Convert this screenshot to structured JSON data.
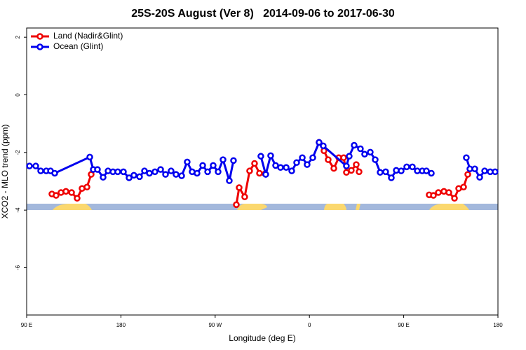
{
  "chart_data": {
    "type": "line",
    "title": "25S-20S August (Ver 8)   2014-09-06 to 2017-06-30",
    "x_label": "Longitude (deg E)",
    "y_label": "XCO2 - MLO trend (ppm)",
    "xlim": [
      90,
      540
    ],
    "xticks": [
      {
        "value": 90,
        "label": "90 E"
      },
      {
        "value": 180,
        "label": "180"
      },
      {
        "value": 270,
        "label": "90 W"
      },
      {
        "value": 360,
        "label": "0"
      },
      {
        "value": 450,
        "label": "90 E"
      },
      {
        "value": 540,
        "label": "180"
      }
    ],
    "ylim": [
      -7.64,
      2.32
    ],
    "yticks": [
      2,
      0,
      -2,
      -4,
      -6
    ],
    "legend": "top-left",
    "series": [
      {
        "name": "Land (Nadir&Glint)",
        "color": "#ee0000",
        "x": [
          114.1,
          118.1,
          122.8,
          127.5,
          132.9,
          138.2,
          142.9,
          147.6,
          151.6,
          null,
          290.2,
          292.9,
          298.2,
          302.9,
          307.6,
          312.3,
          317.7,
          null,
          369.2,
          373.9,
          377.9,
          383.3,
          388.0,
          392.7,
          395.3,
          400.0,
          404.7,
          407.4,
          null,
          474.3,
          478.4,
          483.1,
          488.4,
          493.1,
          498.5,
          502.5,
          507.2,
          511.2
        ],
        "values": [
          -3.44,
          -3.49,
          -3.39,
          -3.35,
          -3.39,
          -3.59,
          -3.25,
          -3.2,
          -2.76,
          null,
          -3.81,
          -3.22,
          -3.54,
          -2.64,
          -2.38,
          -2.72,
          -2.74,
          null,
          -1.65,
          -1.94,
          -2.25,
          -2.55,
          -2.18,
          -2.18,
          -2.69,
          -2.62,
          -2.42,
          -2.67,
          null,
          -3.47,
          -3.49,
          -3.39,
          -3.35,
          -3.39,
          -3.59,
          -3.25,
          -3.2,
          -2.76
        ]
      },
      {
        "name": "Ocean (Glint)",
        "color": "#0000ee",
        "x": [
          92.7,
          98.7,
          103.4,
          108.7,
          112.8,
          116.8,
          150.3,
          153.6,
          157.6,
          163.0,
          167.7,
          172.4,
          177.0,
          182.4,
          187.8,
          192.4,
          197.8,
          202.5,
          207.2,
          212.5,
          217.9,
          222.6,
          227.9,
          232.6,
          238.0,
          243.3,
          248.0,
          252.7,
          258.1,
          262.8,
          268.1,
          272.8,
          277.5,
          283.5,
          287.5,
          null,
          313.6,
          318.3,
          323.0,
          327.7,
          332.4,
          337.8,
          343.1,
          347.8,
          353.2,
          357.8,
          363.2,
          369.2,
          373.2,
          395.3,
          398.0,
          402.7,
          408.7,
          412.7,
          418.1,
          422.8,
          427.5,
          432.8,
          438.2,
          442.9,
          447.6,
          452.9,
          458.3,
          463.0,
          467.7,
          471.7,
          476.4,
          null,
          509.8,
          513.2,
          517.9,
          522.6,
          527.3,
          532.6,
          537.3
        ],
        "values": [
          -2.47,
          -2.47,
          -2.64,
          -2.64,
          -2.64,
          -2.72,
          -2.16,
          -2.59,
          -2.59,
          -2.86,
          -2.64,
          -2.67,
          -2.67,
          -2.67,
          -2.88,
          -2.79,
          -2.84,
          -2.64,
          -2.72,
          -2.67,
          -2.59,
          -2.76,
          -2.64,
          -2.76,
          -2.81,
          -2.33,
          -2.67,
          -2.72,
          -2.45,
          -2.67,
          -2.45,
          -2.67,
          -2.25,
          -2.98,
          -2.28,
          null,
          -2.13,
          -2.76,
          -2.11,
          -2.45,
          -2.52,
          -2.52,
          -2.64,
          -2.35,
          -2.18,
          -2.42,
          -2.18,
          -1.65,
          -1.77,
          -2.47,
          -2.13,
          -1.75,
          -1.87,
          -2.06,
          -1.99,
          -2.25,
          -2.69,
          -2.67,
          -2.88,
          -2.62,
          -2.64,
          -2.5,
          -2.5,
          -2.64,
          -2.64,
          -2.64,
          -2.72,
          null,
          -2.18,
          -2.57,
          -2.57,
          -2.86,
          -2.64,
          -2.67,
          -2.67
        ]
      }
    ]
  }
}
